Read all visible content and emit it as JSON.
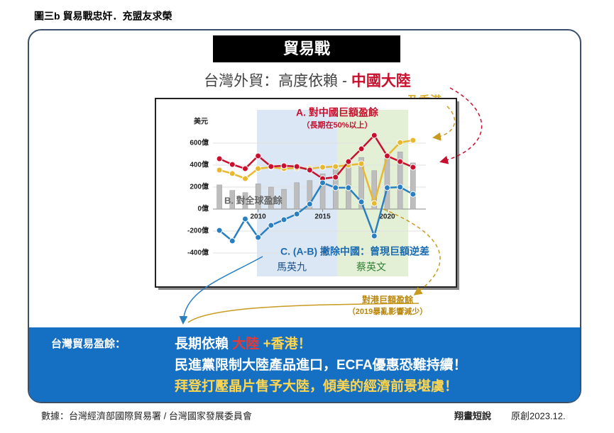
{
  "header": {
    "title": "圖三b  貿易戰忠奸．充盟友求榮"
  },
  "panel": {
    "title": "貿易戰",
    "subtitle": "台灣外貿：高度依賴 - ",
    "subtitle_highlight": "中國大陸",
    "subtitle_extra": "及香港"
  },
  "chart_data": {
    "type": "line",
    "y_label": "美元",
    "x": [
      2007,
      2008,
      2009,
      2010,
      2011,
      2012,
      2013,
      2014,
      2015,
      2016,
      2017,
      2018,
      2019,
      2020,
      2021,
      2022
    ],
    "xlim": [
      2006.5,
      2023
    ],
    "xticks": [
      2010,
      2015,
      2020
    ],
    "ylim": [
      -500,
      800
    ],
    "yticks": [
      {
        "value": -400,
        "label": "-400億"
      },
      {
        "value": -200,
        "label": "-200億"
      },
      {
        "value": 0,
        "label": "0億"
      },
      {
        "value": 200,
        "label": "200億"
      },
      {
        "value": 400,
        "label": "400億"
      },
      {
        "value": 600,
        "label": "600億"
      }
    ],
    "grid": true,
    "series": [
      {
        "name": "B. 對全球盈餘",
        "type": "bar",
        "color": "#bdbdbd",
        "values": [
          220,
          170,
          150,
          230,
          200,
          180,
          240,
          260,
          320,
          370,
          410,
          470,
          350,
          460,
          520,
          420
        ]
      },
      {
        "name": "對港巨額盈餘",
        "type": "line",
        "color": "#e8b830",
        "values": [
          355,
          323,
          277,
          368,
          381,
          368,
          374,
          368,
          381,
          387,
          400,
          413,
          52,
          484,
          606,
          626
        ]
      },
      {
        "name": "A. 對中國巨額盈餘",
        "type": "line",
        "color": "#c8102e",
        "values": [
          458,
          406,
          368,
          484,
          387,
          394,
          387,
          355,
          277,
          290,
          432,
          548,
          671,
          484,
          432,
          381
        ]
      },
      {
        "name": "C. (A-B) 撇除中國：曾現巨額逆差",
        "type": "line",
        "color": "#2a7fc0",
        "values": [
          -194,
          -290,
          -90,
          -258,
          -148,
          -97,
          -45,
          45,
          239,
          194,
          194,
          65,
          -245,
          194,
          200,
          135
        ]
      }
    ],
    "annotations": {
      "china_note": "（長期在50%以上）",
      "hk_note": "（2019暴亂影響減少）",
      "ma": "馬英九",
      "tsai": "蔡英文"
    }
  },
  "banner": {
    "label": "台灣貿易盈餘：",
    "line1_a": "長期依賴 ",
    "line1_b": "大",
    "line1_c": "陸",
    "line1_d": " +香港！",
    "line2": "民進黨限制大陸產品進口，ECFA優惠恐難持續！",
    "line3": "拜登打壓晶片售予大陸，傾美的經濟前景堪虞！"
  },
  "footer": {
    "source": "數據：台灣經濟部國際貿易署 / 台灣國家發展委員會",
    "brand": "翔畫短說",
    "note": "原創2023.12."
  }
}
